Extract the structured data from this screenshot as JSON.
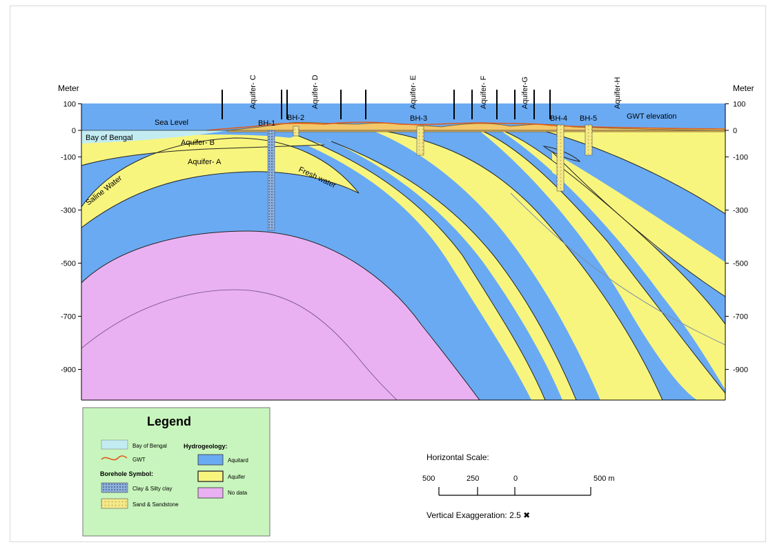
{
  "axis": {
    "unit_label": "Meter",
    "ticks": [
      "100",
      "0",
      "-100",
      "-300",
      "-500",
      "-700",
      "-900"
    ]
  },
  "labels": {
    "sea_level": "Sea Level",
    "bay": "Bay of Bengal",
    "gwt": "GWT elevation",
    "saline": "Saline Water",
    "fresh": "Fresh water",
    "aquifer_a": "Aquifer- A",
    "aquifer_b": "Aquifer- B"
  },
  "aquifer_labels": [
    "Aquifer- C",
    "Aquifer- D",
    "Aquifer- E",
    "Aquifer- F",
    "Aquifer-G",
    "Aquifer-H"
  ],
  "boreholes": [
    "BH-1",
    "BH-2",
    "BH-3",
    "BH-4",
    "BH-5"
  ],
  "legend": {
    "title": "Legend",
    "bay": "Bay of Bengal",
    "gwt": "GWT",
    "borehole_heading": "Borehole Symbol:",
    "clay": "Clay & Silty clay",
    "sand": "Sand & Sandstone",
    "hydro_heading": "Hydrogeology:",
    "aquitard": "Aquitard",
    "aquifer": "Aquifer",
    "nodata": "No data"
  },
  "scale": {
    "title": "Horizontal Scale:",
    "ticks": [
      "500",
      "250",
      "0",
      "500 m"
    ],
    "exaggeration": "Vertical Exaggeration: 2.5 ✖"
  },
  "colors": {
    "aquitard": "#6aaaf2",
    "aquifer": "#f8f57e",
    "nodata": "#e9b1f1",
    "bay": "#c2ecf2",
    "gwt": "#e05a1a",
    "legend_bg": "#c8f5bd"
  }
}
